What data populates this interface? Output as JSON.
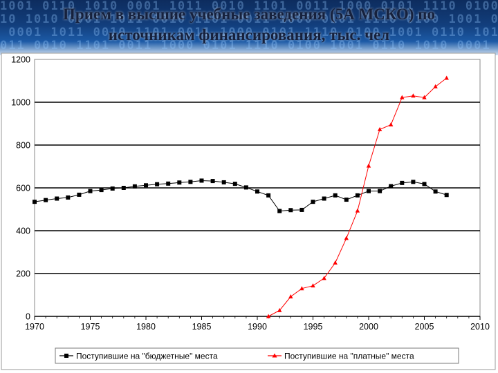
{
  "header": {
    "title_line1": "Прием в высшие учебные заведения (5А МСКО) по",
    "title_line2": "источникам финансирования, тыс. чел",
    "background_pattern": "1001 0110 1010 0001 1011 0010 1101 0011 1000 0101 1110 0100"
  },
  "chart_data": {
    "type": "line",
    "title": "Прием в высшие учебные заведения (5А МСКО) по источникам финансирования, тыс. чел",
    "xlabel": "",
    "ylabel": "",
    "xlim": [
      1970,
      2010
    ],
    "ylim": [
      0,
      1200
    ],
    "x_ticks": [
      "1970",
      "1975",
      "1980",
      "1985",
      "1990",
      "1995",
      "2000",
      "2005",
      "2010"
    ],
    "y_ticks": [
      "0",
      "200",
      "400",
      "600",
      "800",
      "1000",
      "1200"
    ],
    "grid": "horizontal",
    "legend_position": "bottom",
    "series": [
      {
        "name": "Поступившие на \"бюджетные\" места",
        "color": "#000000",
        "marker": "square",
        "x": [
          1970,
          1971,
          1972,
          1973,
          1974,
          1975,
          1976,
          1977,
          1978,
          1979,
          1980,
          1981,
          1982,
          1983,
          1984,
          1985,
          1986,
          1987,
          1988,
          1989,
          1990,
          1991,
          1992,
          1993,
          1994,
          1995,
          1996,
          1997,
          1998,
          1999,
          2000,
          2001,
          2002,
          2003,
          2004,
          2005,
          2006,
          2007
        ],
        "values": [
          535,
          543,
          550,
          555,
          568,
          585,
          590,
          597,
          600,
          607,
          612,
          617,
          620,
          625,
          628,
          634,
          632,
          626,
          619,
          602,
          583,
          565,
          492,
          496,
          497,
          535,
          550,
          565,
          545,
          565,
          585,
          585,
          608,
          623,
          628,
          618,
          583,
          567
        ]
      },
      {
        "name": "Поступившие на \"платные\" места",
        "color": "#ff0000",
        "marker": "triangle",
        "x": [
          1991,
          1992,
          1993,
          1994,
          1995,
          1996,
          1997,
          1998,
          1999,
          2000,
          2001,
          2002,
          2003,
          2004,
          2005,
          2006,
          2007
        ],
        "values": [
          0,
          28,
          92,
          130,
          143,
          178,
          250,
          365,
          493,
          703,
          873,
          895,
          1022,
          1030,
          1022,
          1073,
          1113
        ]
      }
    ]
  }
}
